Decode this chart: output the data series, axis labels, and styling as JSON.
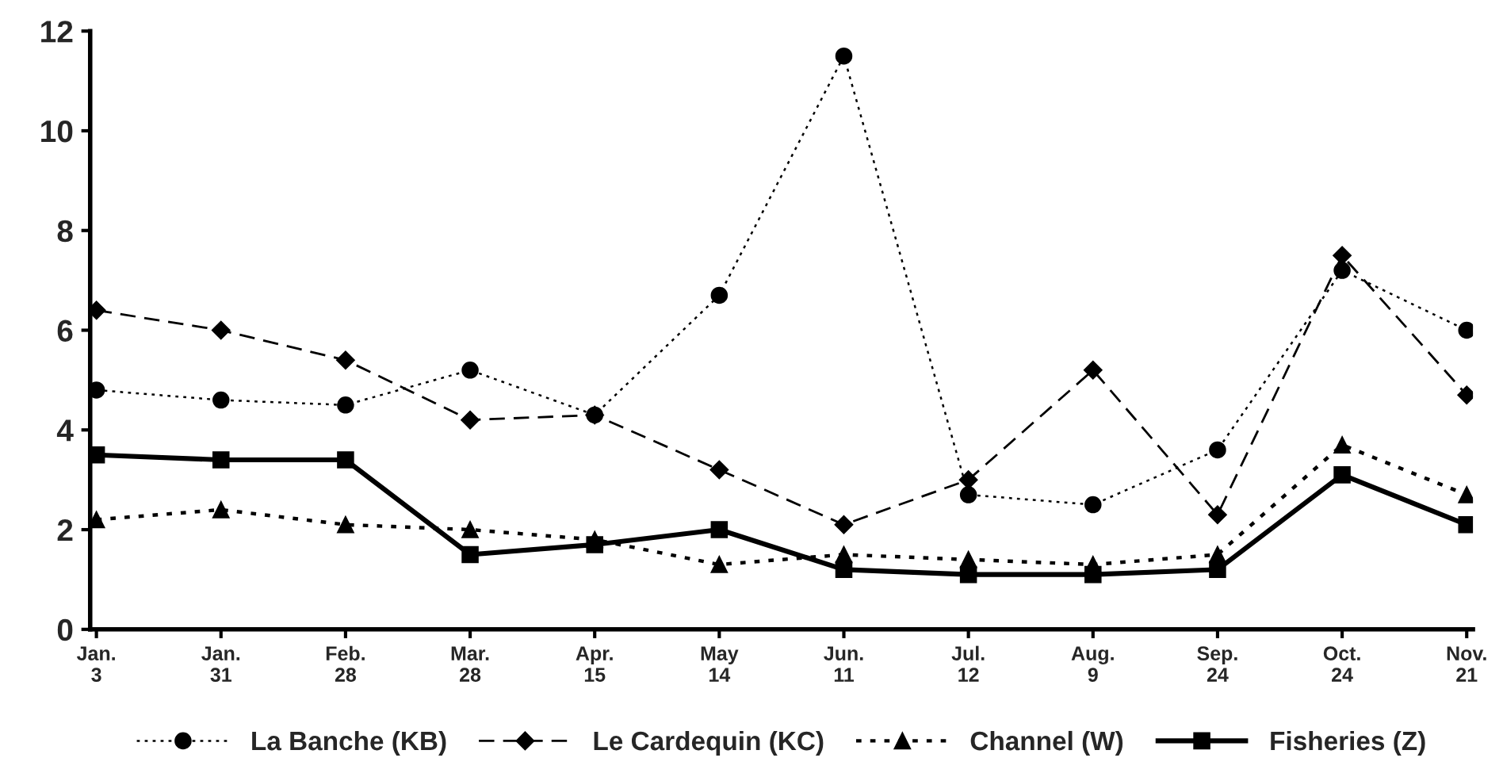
{
  "chart_data": {
    "type": "line",
    "categories": [
      "Jan.\n3",
      "Jan.\n31",
      "Feb.\n28",
      "Mar.\n28",
      "Apr.\n15",
      "May\n14",
      "Jun.\n11",
      "Jul.\n12",
      "Aug.\n9",
      "Sep.\n24",
      "Oct.\n24",
      "Nov.\n21"
    ],
    "series": [
      {
        "name": "La Banche (KB)",
        "color": "#000000",
        "marker": "circle",
        "line_style": "dotted",
        "values": [
          4.8,
          4.6,
          4.5,
          5.2,
          4.3,
          6.7,
          11.5,
          2.7,
          2.5,
          3.6,
          7.2,
          6.0
        ]
      },
      {
        "name": "Le Cardequin (KC)",
        "color": "#000000",
        "marker": "diamond",
        "line_style": "dashed",
        "values": [
          6.4,
          6.0,
          5.4,
          4.2,
          4.3,
          3.2,
          2.1,
          3.0,
          5.2,
          2.3,
          7.5,
          4.7
        ]
      },
      {
        "name": "Channel (W)",
        "color": "#000000",
        "marker": "triangle",
        "line_style": "dotted",
        "values": [
          2.2,
          2.4,
          2.1,
          2.0,
          1.8,
          1.3,
          1.5,
          1.4,
          1.3,
          1.5,
          3.7,
          2.7
        ]
      },
      {
        "name": "Fisheries (Z)",
        "color": "#000000",
        "marker": "square",
        "line_style": "solid",
        "values": [
          3.5,
          3.4,
          3.4,
          1.5,
          1.7,
          2.0,
          1.2,
          1.1,
          1.1,
          1.2,
          3.1,
          2.1
        ]
      }
    ],
    "ylim": [
      0,
      12
    ],
    "yticks": [
      0,
      2,
      4,
      6,
      8,
      10,
      12
    ],
    "grid": false,
    "legend": "bottom"
  }
}
